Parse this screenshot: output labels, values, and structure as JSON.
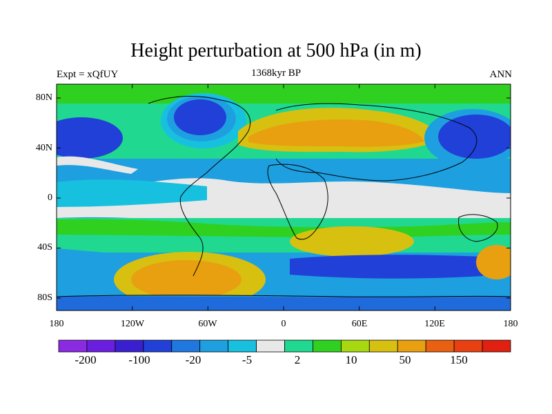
{
  "figure": {
    "title": "Height perturbation at 500 hPa (in m)",
    "left_string": "Expt = xQfUY",
    "center_string": "1368kyr BP",
    "right_string": "ANN"
  },
  "axes": {
    "lat_ticks": [
      "80N",
      "40N",
      "0",
      "40S",
      "80S"
    ],
    "lon_ticks": [
      "180",
      "120W",
      "60W",
      "0",
      "60E",
      "120E",
      "180"
    ]
  },
  "colorbar": {
    "colors": [
      "#8a2be2",
      "#6a1fe0",
      "#3a1fd0",
      "#2040d8",
      "#1e78e0",
      "#1ea0e0",
      "#18c0e0",
      "#e8e8e8",
      "#20d890",
      "#30d020",
      "#a8d810",
      "#d8c010",
      "#e8a010",
      "#e86010",
      "#e84010",
      "#e02010"
    ],
    "labels": [
      "-200",
      "-100",
      "-20",
      "-5",
      "2",
      "10",
      "50",
      "150"
    ]
  },
  "map": {
    "colors": {
      "white": "#e8e8e8",
      "cyan": "#18c0e0",
      "lightblue": "#1ea0e0",
      "blue": "#2040d8",
      "green": "#20d890",
      "limegreen": "#30d020",
      "yellow": "#d8c010",
      "orange": "#e8a010"
    }
  }
}
